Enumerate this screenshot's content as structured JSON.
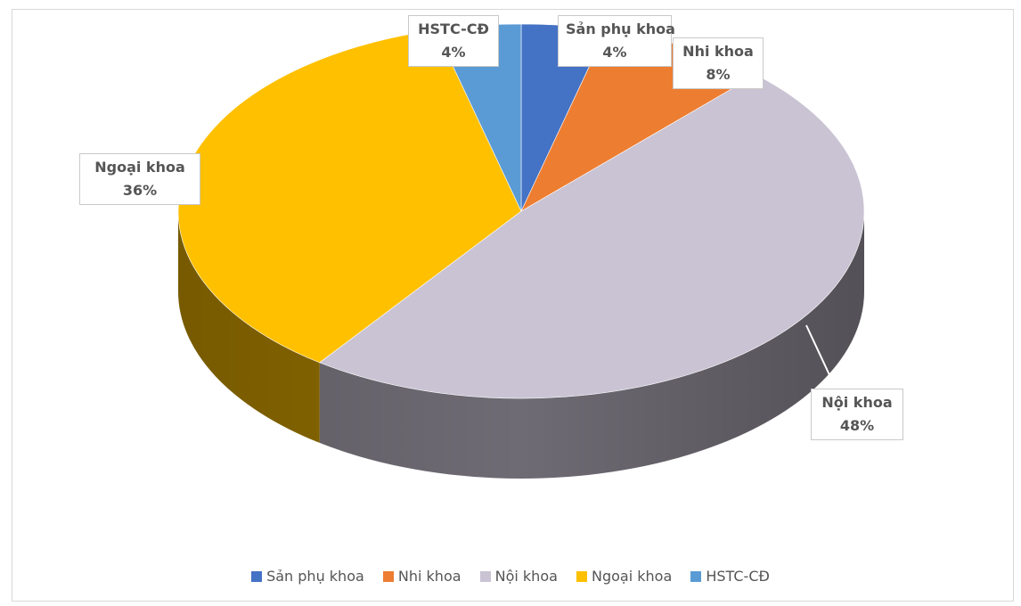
{
  "chart_data": {
    "type": "pie",
    "title": "",
    "slices": [
      {
        "label": "Sản phụ khoa",
        "value": 4,
        "percent_label": "4%",
        "color": "#4472C4"
      },
      {
        "label": "Nhi khoa",
        "value": 8,
        "percent_label": "8%",
        "color": "#ED7D31"
      },
      {
        "label": "Nội khoa",
        "value": 48,
        "percent_label": "48%",
        "color": "#C9C3D3"
      },
      {
        "label": "Ngoại khoa",
        "value": 36,
        "percent_label": "36%",
        "color": "#FFC000"
      },
      {
        "label": "HSTC-CĐ",
        "value": 4,
        "percent_label": "4%",
        "color": "#5B9BD5"
      }
    ],
    "legend_position": "bottom",
    "style": "3d-pie"
  }
}
